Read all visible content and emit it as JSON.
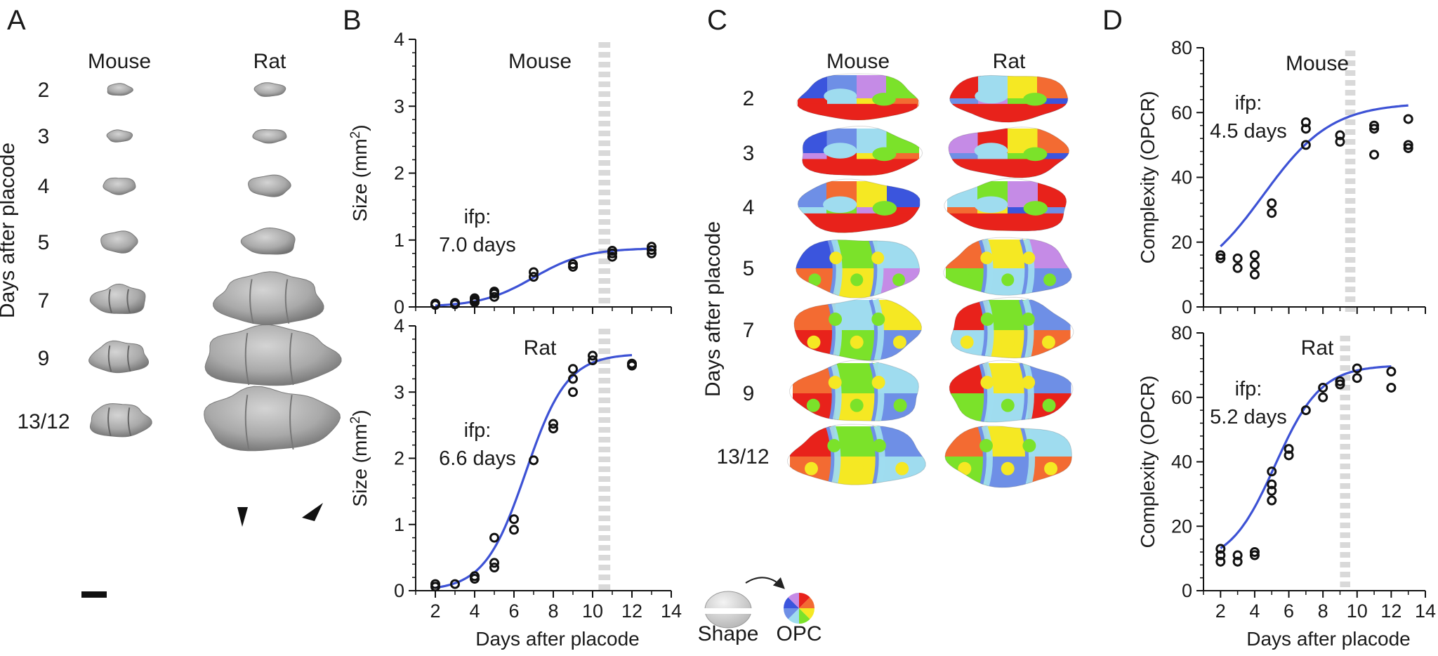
{
  "panel_a": {
    "letter": "A",
    "col_labels": [
      "Mouse",
      "Rat"
    ],
    "ylabel": "Days after placode",
    "day_labels": [
      "2",
      "3",
      "4",
      "5",
      "7",
      "9",
      "13/12"
    ]
  },
  "panel_b": {
    "letter": "B",
    "xlabel": "Days after placode"
  },
  "panel_c": {
    "letter": "C",
    "col_labels": [
      "Mouse",
      "Rat"
    ],
    "ylabel": "Days after placode",
    "day_labels": [
      "2",
      "3",
      "4",
      "5",
      "7",
      "9",
      "13/12"
    ],
    "legend_shape": "Shape",
    "legend_opc": "OPC",
    "opc_colors": [
      "#e8221b",
      "#f36b32",
      "#f5e823",
      "#7be22a",
      "#9fdcef",
      "#6e8fe6",
      "#3b55dd",
      "#c58be6"
    ]
  },
  "panel_d": {
    "letter": "D",
    "xlabel": "Days after placode"
  },
  "colors": {
    "fit_line": "#3d52d5",
    "marker": "#111111",
    "growth_band": "#d9d9d9"
  },
  "chart_data": [
    {
      "id": "B-mouse",
      "type": "scatter",
      "title": "Mouse",
      "ylabel": "Size (mm²)",
      "ylabel_main": "Size (mm",
      "ylabel_sup": "2",
      "ylabel_tail": ")",
      "xlim": [
        1,
        14
      ],
      "ylim": [
        0,
        4
      ],
      "xticks": [
        "2",
        "4",
        "6",
        "8",
        "10",
        "12",
        "14"
      ],
      "yticks": [
        "0",
        "1",
        "2",
        "3",
        "4"
      ],
      "annotation_line1": "ifp:",
      "annotation_line2": "7.0 days",
      "ifp_days": 7.0,
      "growth_band_x": [
        10.3,
        10.9
      ],
      "fit": {
        "L": 0.88,
        "k": 0.75,
        "x0": 7.0
      },
      "points": [
        [
          2,
          0.03
        ],
        [
          2,
          0.05
        ],
        [
          3,
          0.04
        ],
        [
          3,
          0.06
        ],
        [
          4,
          0.07
        ],
        [
          4,
          0.1
        ],
        [
          4,
          0.13
        ],
        [
          5,
          0.15
        ],
        [
          5,
          0.2
        ],
        [
          5,
          0.23
        ],
        [
          7,
          0.45
        ],
        [
          7,
          0.52
        ],
        [
          9,
          0.6
        ],
        [
          9,
          0.64
        ],
        [
          11,
          0.75
        ],
        [
          11,
          0.8
        ],
        [
          11,
          0.84
        ],
        [
          13,
          0.8
        ],
        [
          13,
          0.85
        ],
        [
          13,
          0.9
        ]
      ]
    },
    {
      "id": "B-rat",
      "type": "scatter",
      "title": "Rat",
      "ylabel": "Size (mm²)",
      "ylabel_main": "Size (mm",
      "ylabel_sup": "2",
      "ylabel_tail": ")",
      "xlim": [
        1,
        14
      ],
      "ylim": [
        0,
        4
      ],
      "xticks": [
        "2",
        "4",
        "6",
        "8",
        "10",
        "12",
        "14"
      ],
      "yticks": [
        "0",
        "1",
        "2",
        "3",
        "4"
      ],
      "annotation_line1": "ifp:",
      "annotation_line2": "6.6 days",
      "ifp_days": 6.6,
      "growth_band_x": [
        10.3,
        10.9
      ],
      "fit": {
        "L": 3.58,
        "k": 0.95,
        "x0": 6.6
      },
      "points": [
        [
          2,
          0.06
        ],
        [
          2,
          0.1
        ],
        [
          3,
          0.1
        ],
        [
          4,
          0.18
        ],
        [
          4,
          0.22
        ],
        [
          5,
          0.35
        ],
        [
          5,
          0.42
        ],
        [
          5,
          0.8
        ],
        [
          6,
          0.92
        ],
        [
          6,
          1.08
        ],
        [
          7,
          1.97
        ],
        [
          8,
          2.45
        ],
        [
          8,
          2.52
        ],
        [
          9,
          3.0
        ],
        [
          9,
          3.2
        ],
        [
          9,
          3.35
        ],
        [
          10,
          3.48
        ],
        [
          10,
          3.55
        ],
        [
          12,
          3.4
        ],
        [
          12,
          3.43
        ]
      ]
    },
    {
      "id": "D-mouse",
      "type": "scatter",
      "title": "Mouse",
      "ylabel": "Complexity (OPCR)",
      "xlim": [
        1,
        14
      ],
      "ylim": [
        0,
        80
      ],
      "xticks": [
        "2",
        "4",
        "6",
        "8",
        "10",
        "12",
        "14"
      ],
      "yticks": [
        "0",
        "20",
        "40",
        "60",
        "80"
      ],
      "annotation_line1": "ifp:",
      "annotation_line2": "4.5 days",
      "ifp_days": 4.5,
      "growth_band_x": [
        9.3,
        9.9
      ],
      "fit": {
        "L": 57,
        "k": 0.5,
        "x0": 4.5,
        "y0": 6
      },
      "points": [
        [
          2,
          15
        ],
        [
          2,
          16
        ],
        [
          3,
          12
        ],
        [
          3,
          15
        ],
        [
          4,
          10
        ],
        [
          4,
          13
        ],
        [
          4,
          16
        ],
        [
          5,
          29
        ],
        [
          5,
          32
        ],
        [
          7,
          50
        ],
        [
          7,
          55
        ],
        [
          7,
          57
        ],
        [
          9,
          51
        ],
        [
          9,
          53
        ],
        [
          11,
          47
        ],
        [
          11,
          55
        ],
        [
          11,
          56
        ],
        [
          13,
          49
        ],
        [
          13,
          50
        ],
        [
          13,
          58
        ]
      ]
    },
    {
      "id": "D-rat",
      "type": "scatter",
      "title": "Rat",
      "ylabel": "Complexity (OPCR)",
      "xlim": [
        1,
        14
      ],
      "ylim": [
        0,
        80
      ],
      "xticks": [
        "2",
        "4",
        "6",
        "8",
        "10",
        "12",
        "14"
      ],
      "yticks": [
        "0",
        "20",
        "40",
        "60",
        "80"
      ],
      "annotation_line1": "ifp:",
      "annotation_line2": "5.2 days",
      "ifp_days": 5.2,
      "growth_band_x": [
        9.0,
        9.6
      ],
      "fit": {
        "L": 62,
        "k": 0.75,
        "x0": 5.2,
        "y0": 8
      },
      "points": [
        [
          2,
          9
        ],
        [
          2,
          11
        ],
        [
          2,
          13
        ],
        [
          3,
          9
        ],
        [
          3,
          11
        ],
        [
          4,
          11
        ],
        [
          4,
          12
        ],
        [
          5,
          28
        ],
        [
          5,
          31
        ],
        [
          5,
          33
        ],
        [
          5,
          37
        ],
        [
          6,
          42
        ],
        [
          6,
          44
        ],
        [
          7,
          56
        ],
        [
          8,
          60
        ],
        [
          8,
          63
        ],
        [
          9,
          64
        ],
        [
          9,
          65
        ],
        [
          10,
          66
        ],
        [
          10,
          69
        ],
        [
          12,
          63
        ],
        [
          12,
          68
        ]
      ]
    }
  ]
}
